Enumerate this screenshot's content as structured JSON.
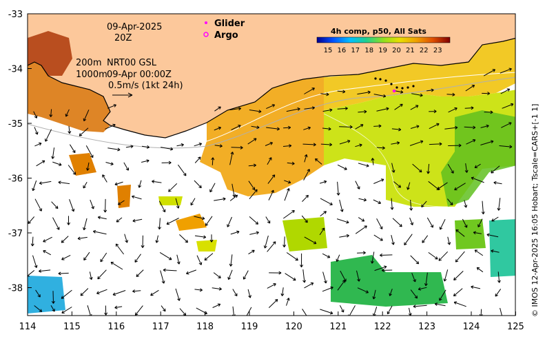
{
  "annotations": {
    "date": "09-Apr-2025",
    "hour": "20Z",
    "isobath_200": "200m",
    "isobath_1000": "1000m",
    "current_src": "NRT00 GSL",
    "current_time": "09-Apr 00:00Z",
    "scale_label": "0.5m/s (1kt 24h)"
  },
  "legend": {
    "glider": "Glider",
    "argo": "Argo",
    "glider_color": "#ff00ff",
    "argo_color": "#ff00ff"
  },
  "colorbar": {
    "title": "4h comp, p50, All Sats",
    "ticks": [
      "15",
      "16",
      "17",
      "18",
      "19",
      "20",
      "21",
      "22",
      "23"
    ],
    "colors": [
      "#00008f",
      "#0040ff",
      "#00c0ff",
      "#20d0a0",
      "#60d040",
      "#c8e000",
      "#f0c000",
      "#f07000",
      "#c02000",
      "#7f0000"
    ]
  },
  "axes": {
    "x_ticks": [
      "114",
      "115",
      "116",
      "117",
      "118",
      "119",
      "120",
      "121",
      "122",
      "123",
      "124",
      "125"
    ],
    "y_ticks": [
      "-33",
      "-34",
      "-35",
      "-36",
      "-37",
      "-38"
    ]
  },
  "credit": "© IMOS 12-Apr-2025 16:05 Hobart; Tscale=CARS+[-1 1]",
  "colors": {
    "land": "#fcc89b",
    "coast": "#000000",
    "warm_sst": "#e8a800",
    "cool_sst": "#b8e000"
  }
}
